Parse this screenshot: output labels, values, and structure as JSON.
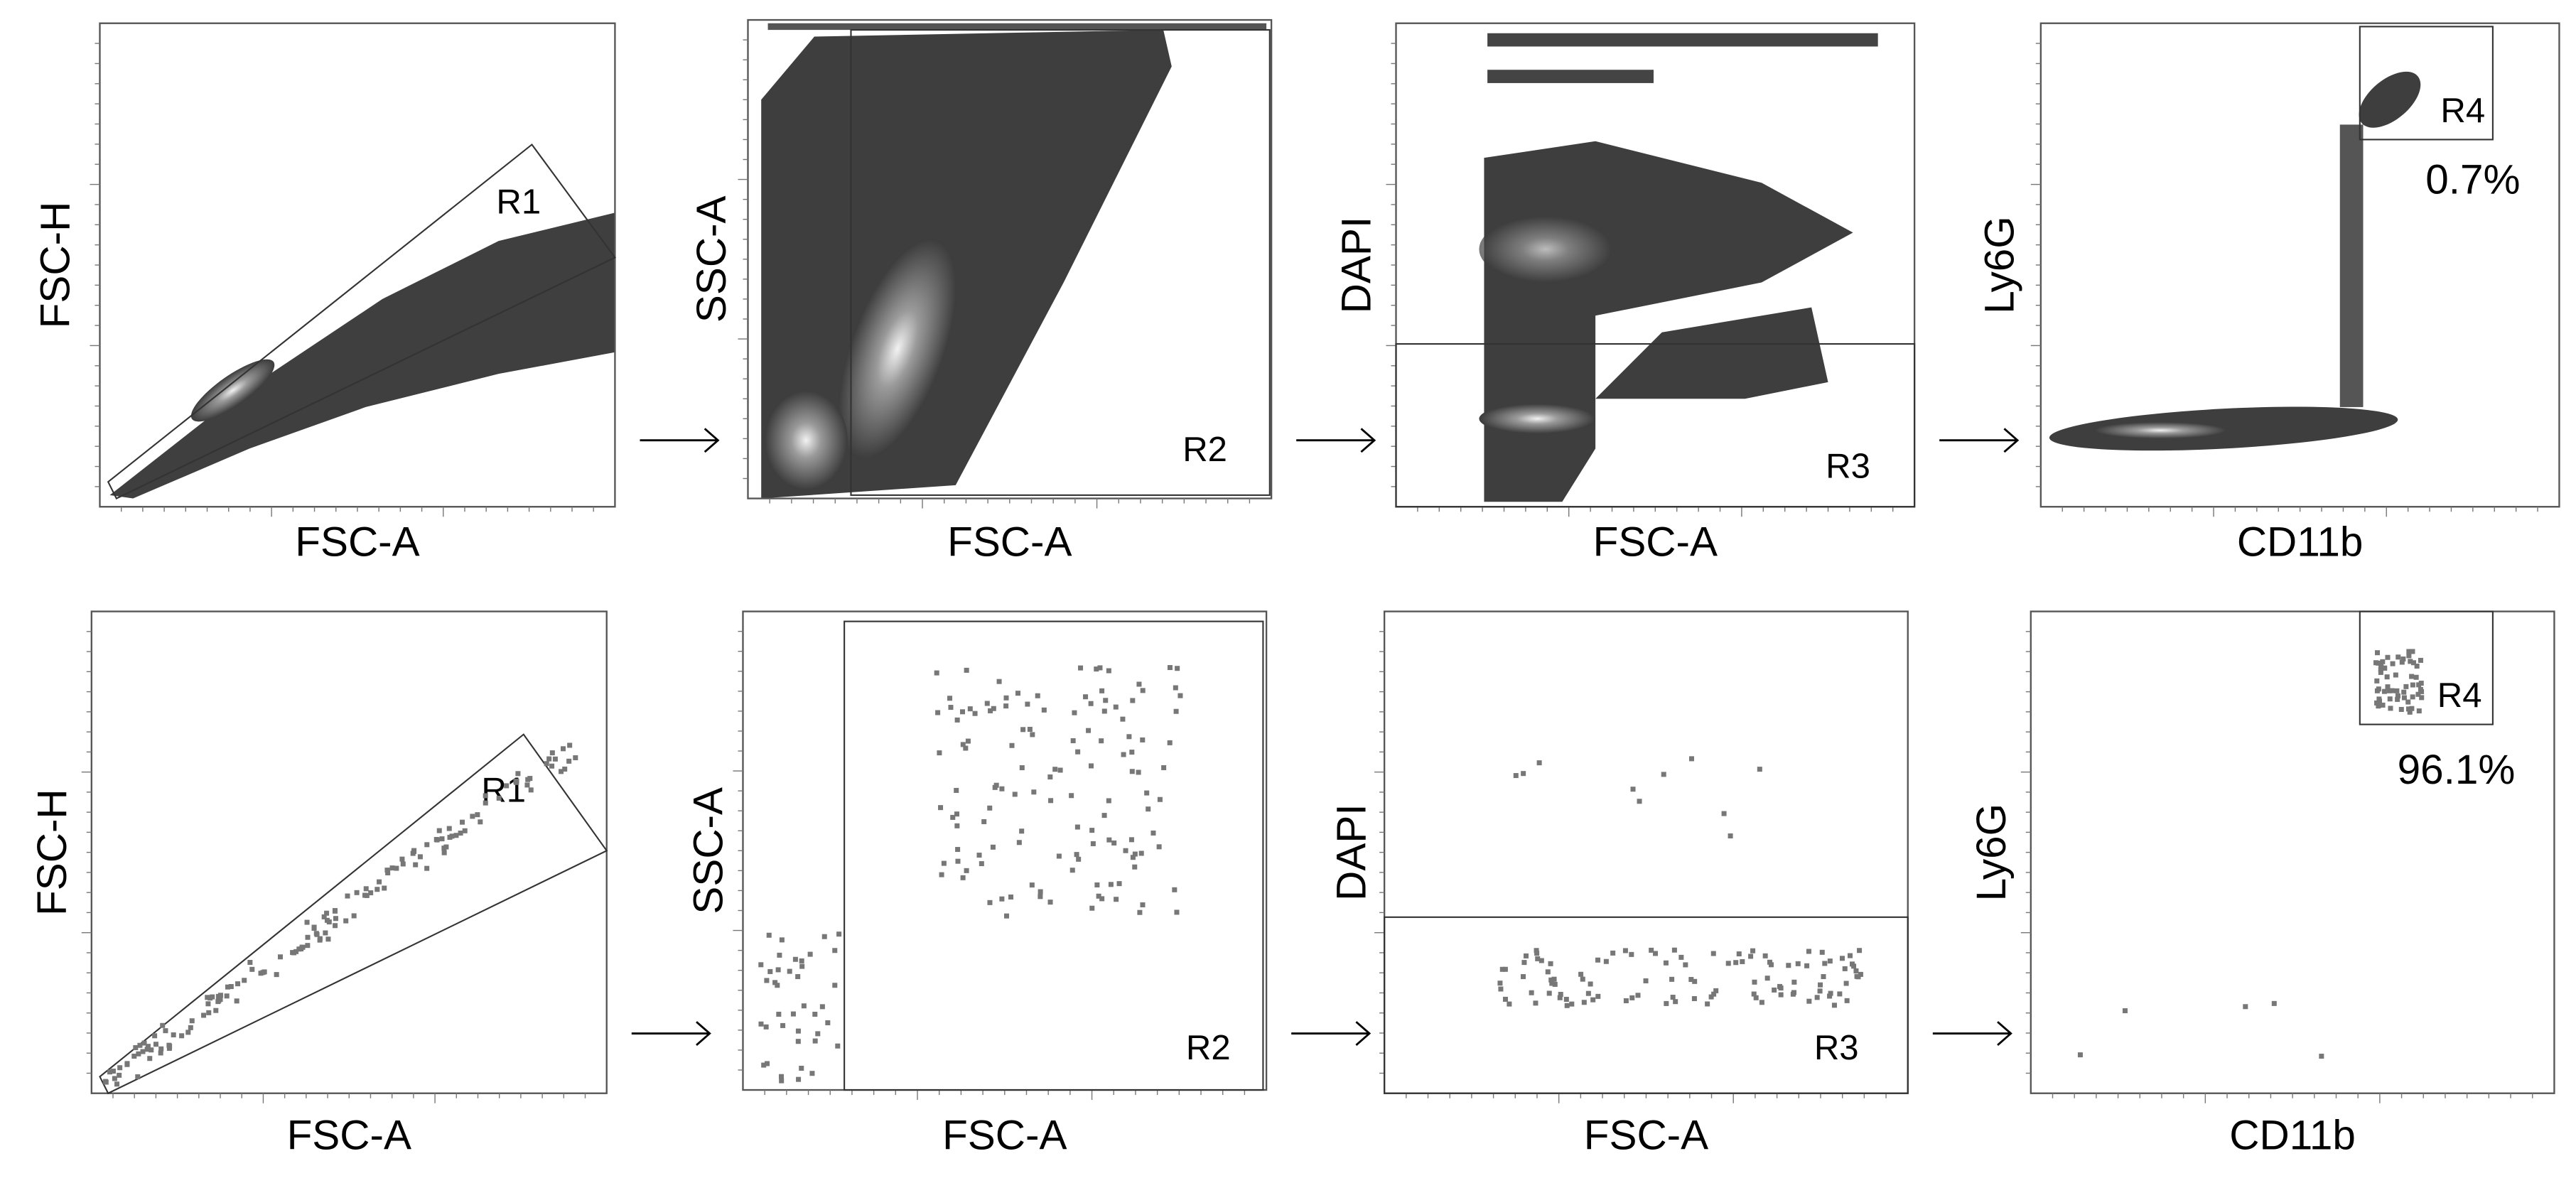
{
  "rows": [
    {
      "panels": [
        {
          "x_label": "FSC-A",
          "y_label": "FSC-H",
          "gate": "R1"
        },
        {
          "x_label": "FSC-A",
          "y_label": "SSC-A",
          "gate": "R2"
        },
        {
          "x_label": "FSC-A",
          "y_label": "DAPI",
          "gate": "R3"
        },
        {
          "x_label": "CD11b",
          "y_label": "Ly6G",
          "gate": "R4",
          "percent": "0.7%"
        }
      ]
    },
    {
      "panels": [
        {
          "x_label": "FSC-A",
          "y_label": "FSC-H",
          "gate": "R1"
        },
        {
          "x_label": "FSC-A",
          "y_label": "SSC-A",
          "gate": "R2"
        },
        {
          "x_label": "FSC-A",
          "y_label": "DAPI",
          "gate": "R3"
        },
        {
          "x_label": "CD11b",
          "y_label": "Ly6G",
          "gate": "R4",
          "percent": "96.1%"
        }
      ]
    }
  ]
}
